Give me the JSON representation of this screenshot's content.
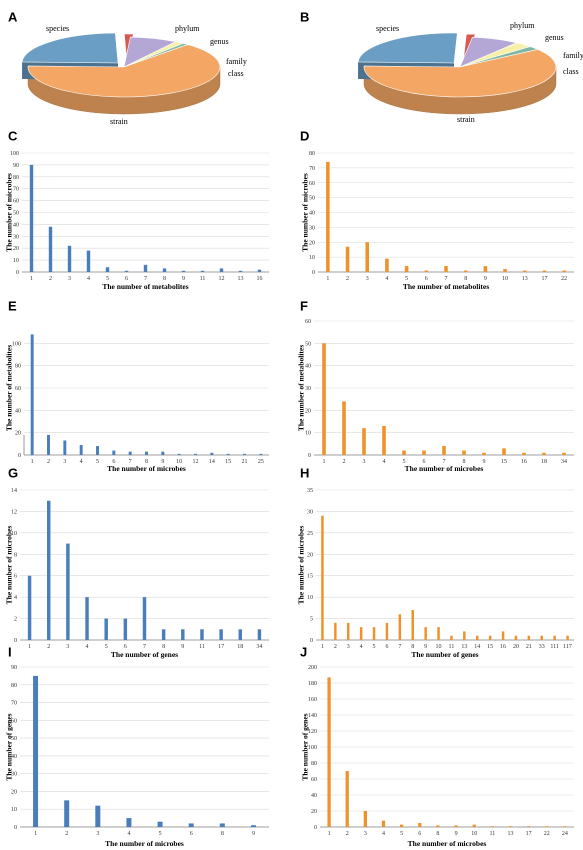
{
  "colors": {
    "blue": "#4a7ebb",
    "orange": "#f0922b",
    "grid": "#d9d9d9",
    "axis": "#7f7f7f"
  },
  "chart_data": [
    {
      "panel": "A",
      "type": "pie",
      "slices": [
        {
          "label": "species",
          "value": 24,
          "color": "#6a9ec5"
        },
        {
          "label": "phylum",
          "value": 1.5,
          "color": "#d9584e"
        },
        {
          "label": "genus",
          "value": 8,
          "color": "#b4a7d6"
        },
        {
          "label": "family",
          "value": 1.5,
          "color": "#f7f1a8"
        },
        {
          "label": "class",
          "value": 1,
          "color": "#7fb8a4"
        },
        {
          "label": "strain",
          "value": 64,
          "color": "#f4a765"
        }
      ]
    },
    {
      "panel": "B",
      "type": "pie",
      "slices": [
        {
          "label": "species",
          "value": 25,
          "color": "#6a9ec5"
        },
        {
          "label": "phylum",
          "value": 1.5,
          "color": "#d9584e"
        },
        {
          "label": "genus",
          "value": 8,
          "color": "#b4a7d6"
        },
        {
          "label": "family",
          "value": 3,
          "color": "#f7f1a8"
        },
        {
          "label": "class",
          "value": 2,
          "color": "#7fb8a4"
        },
        {
          "label": "strain",
          "value": 60.5,
          "color": "#f4a765"
        }
      ]
    },
    {
      "panel": "C",
      "type": "bar",
      "color": "blue",
      "categories": [
        "1",
        "2",
        "3",
        "4",
        "5",
        "6",
        "7",
        "8",
        "9",
        "11",
        "12",
        "13",
        "16"
      ],
      "values": [
        90,
        38,
        22,
        18,
        4,
        1,
        6,
        3,
        1,
        1,
        3,
        1,
        2
      ],
      "ylim": [
        0,
        100
      ],
      "yticks": [
        0,
        10,
        20,
        30,
        40,
        50,
        60,
        70,
        80,
        90,
        100
      ],
      "xlabel": "The number of metabolites",
      "ylabel": "The number of microbes"
    },
    {
      "panel": "D",
      "type": "bar",
      "color": "orange",
      "categories": [
        "1",
        "2",
        "3",
        "4",
        "5",
        "6",
        "7",
        "8",
        "9",
        "10",
        "13",
        "17",
        "22"
      ],
      "values": [
        74,
        17,
        20,
        9,
        4,
        1,
        4,
        1,
        4,
        2,
        1,
        1,
        1
      ],
      "ylim": [
        0,
        80
      ],
      "yticks": [
        0,
        10,
        20,
        30,
        40,
        50,
        60,
        70,
        80
      ],
      "xlabel": "The number of metabolites",
      "ylabel": "The number of microbes"
    },
    {
      "panel": "E",
      "type": "bar",
      "color": "blue",
      "categories": [
        "1",
        "2",
        "3",
        "4",
        "5",
        "6",
        "7",
        "8",
        "9",
        "10",
        "12",
        "14",
        "15",
        "21",
        "25"
      ],
      "values": [
        108,
        18,
        13,
        9,
        8,
        4,
        3,
        3,
        3,
        1,
        1,
        2,
        1,
        1,
        1
      ],
      "ylim": [
        0,
        120
      ],
      "yticks": [
        0,
        20,
        40,
        60,
        80,
        100
      ],
      "xlabel": "The number of microbes",
      "ylabel": "The number of metabolites"
    },
    {
      "panel": "F",
      "type": "bar",
      "color": "orange",
      "categories": [
        "1",
        "2",
        "3",
        "4",
        "5",
        "6",
        "7",
        "8",
        "9",
        "15",
        "16",
        "18",
        "34"
      ],
      "values": [
        50,
        24,
        12,
        13,
        2,
        2,
        4,
        2,
        1,
        3,
        1,
        1,
        1
      ],
      "ylim": [
        0,
        60
      ],
      "yticks": [
        0,
        10,
        20,
        30,
        40,
        50,
        60
      ],
      "xlabel": "The number of microbes",
      "ylabel": "The number of metabolites"
    },
    {
      "panel": "G",
      "type": "bar",
      "color": "blue",
      "categories": [
        "1",
        "2",
        "3",
        "4",
        "5",
        "6",
        "7",
        "8",
        "9",
        "11",
        "17",
        "18",
        "34"
      ],
      "values": [
        6,
        13,
        9,
        4,
        2,
        2,
        4,
        1,
        1,
        1,
        1,
        1,
        1
      ],
      "ylim": [
        0,
        14
      ],
      "yticks": [
        0,
        2,
        4,
        6,
        8,
        10,
        12,
        14
      ],
      "xlabel": "The number of genes",
      "ylabel": "The number of microbes"
    },
    {
      "panel": "H",
      "type": "bar",
      "color": "orange",
      "categories": [
        "1",
        "2",
        "3",
        "4",
        "5",
        "6",
        "7",
        "8",
        "9",
        "10",
        "11",
        "13",
        "14",
        "15",
        "16",
        "20",
        "21",
        "33",
        "111",
        "117"
      ],
      "values": [
        29,
        4,
        4,
        3,
        3,
        4,
        6,
        7,
        3,
        3,
        1,
        2,
        1,
        1,
        2,
        1,
        1,
        1,
        1,
        1
      ],
      "ylim": [
        0,
        35
      ],
      "yticks": [
        0,
        5,
        10,
        15,
        20,
        25,
        30,
        35
      ],
      "xlabel": "The number of genes",
      "ylabel": "The number of microbes"
    },
    {
      "panel": "I",
      "type": "bar",
      "color": "blue",
      "categories": [
        "1",
        "2",
        "3",
        "4",
        "5",
        "6",
        "8",
        "9"
      ],
      "values": [
        85,
        15,
        12,
        5,
        3,
        2,
        2,
        1
      ],
      "ylim": [
        0,
        90
      ],
      "yticks": [
        0,
        10,
        20,
        30,
        40,
        50,
        60,
        70,
        80,
        90
      ],
      "xlabel": "The number of microbes",
      "ylabel": "The number of genes"
    },
    {
      "panel": "J",
      "type": "bar",
      "color": "orange",
      "categories": [
        "1",
        "2",
        "3",
        "4",
        "5",
        "6",
        "8",
        "9",
        "10",
        "11",
        "13",
        "17",
        "22",
        "24"
      ],
      "values": [
        187,
        70,
        20,
        8,
        3,
        5,
        2,
        2,
        3,
        1,
        1,
        1,
        1,
        1
      ],
      "ylim": [
        0,
        200
      ],
      "yticks": [
        0,
        20,
        40,
        60,
        80,
        100,
        120,
        140,
        160,
        180,
        200
      ],
      "xlabel": "The number of microbes",
      "ylabel": "The number of genes"
    }
  ]
}
